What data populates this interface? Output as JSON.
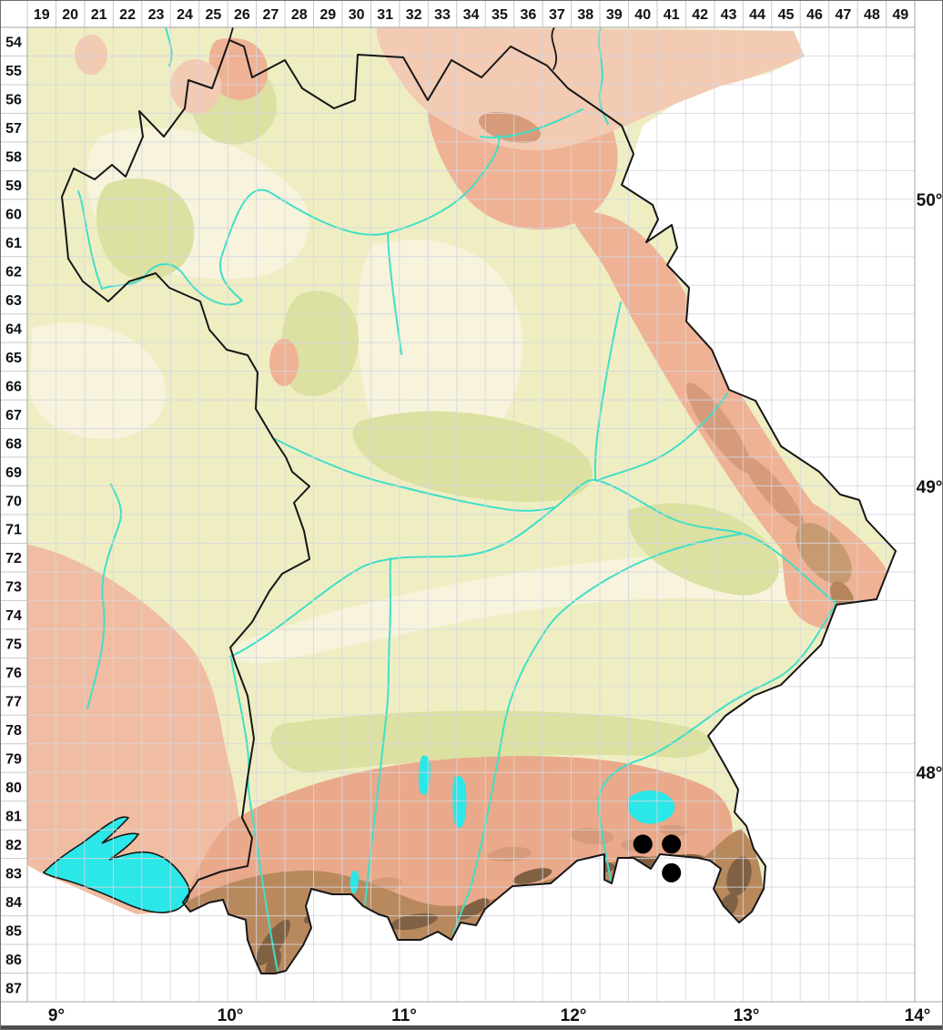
{
  "grid": {
    "column_labels": [
      "19",
      "20",
      "21",
      "22",
      "23",
      "24",
      "25",
      "26",
      "27",
      "28",
      "29",
      "30",
      "31",
      "32",
      "33",
      "34",
      "35",
      "36",
      "37",
      "38",
      "39",
      "40",
      "41",
      "42",
      "43",
      "44",
      "45",
      "46",
      "47",
      "48",
      "49"
    ],
    "row_labels": [
      "54",
      "55",
      "56",
      "57",
      "58",
      "59",
      "60",
      "61",
      "62",
      "63",
      "64",
      "65",
      "66",
      "67",
      "68",
      "69",
      "70",
      "71",
      "72",
      "73",
      "74",
      "75",
      "76",
      "77",
      "78",
      "79",
      "80",
      "81",
      "82",
      "83",
      "84",
      "85",
      "86",
      "87"
    ],
    "latitude_labels": [
      "50°",
      "49°",
      "48°"
    ],
    "longitude_labels": [
      "9°",
      "10°",
      "11°",
      "12°",
      "13°",
      "14°"
    ]
  },
  "occurrences": [
    {
      "column": 40,
      "row": 82
    },
    {
      "column": 41,
      "row": 82
    },
    {
      "column": 41,
      "row": 83
    }
  ],
  "colors": {
    "occurrence_dot": "#000000",
    "lake_water": "#2BE7E7",
    "river_water": "#3FDFC8",
    "lowland": "#EFEEC3",
    "upland_salmon": "#EFB294",
    "alpine_brown": "#B9895E",
    "state_border": "#161616",
    "grid_line": "#D6D6E0"
  }
}
